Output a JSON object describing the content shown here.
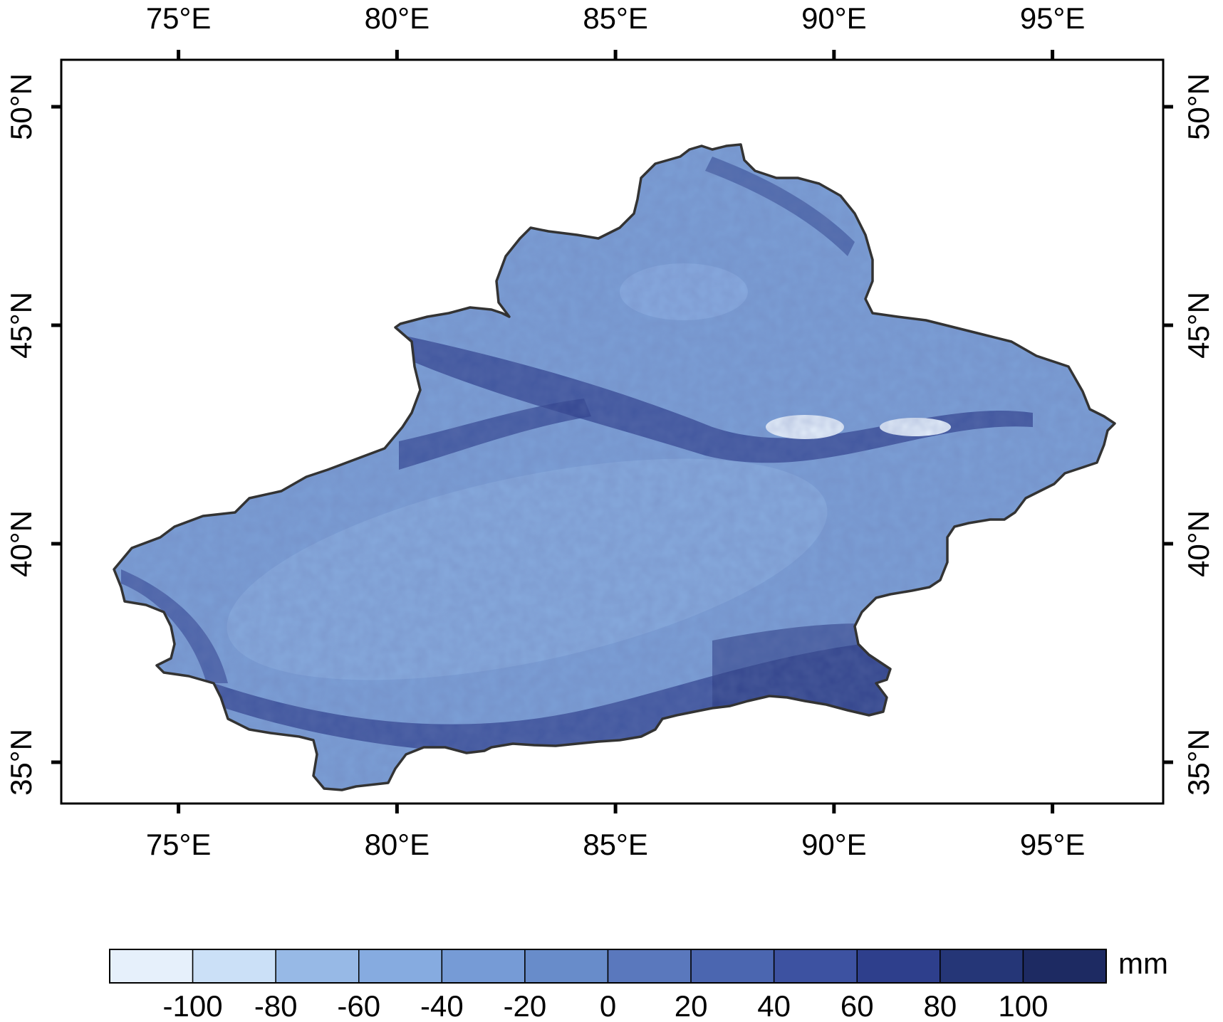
{
  "map": {
    "axes": {
      "lon_ticks": [
        75,
        80,
        85,
        90,
        95
      ],
      "lat_ticks": [
        35,
        40,
        45,
        50
      ],
      "lon_tick_labels": [
        "75°E",
        "80°E",
        "85°E",
        "90°E",
        "95°E"
      ],
      "lat_tick_labels": [
        "35°N",
        "40°N",
        "45°N",
        "50°N"
      ],
      "xlim": [
        72.3,
        97.5
      ],
      "ylim": [
        32.5,
        51.1
      ]
    },
    "region": {
      "name": "",
      "outline_color": "#333333",
      "base_fill": "#7b9fd6"
    },
    "legend": {
      "unit": "mm",
      "labels": [
        "-100",
        "-80",
        "-60",
        "-40",
        "-20",
        "0",
        "20",
        "40",
        "60",
        "80",
        "100"
      ],
      "colors": [
        "#e6f0fb",
        "#cbe0f7",
        "#97b9e6",
        "#86abe0",
        "#769bd6",
        "#688cca",
        "#5a78bd",
        "#4b66b0",
        "#3d52a1",
        "#2e3f8c",
        "#253677",
        "#1d2a62"
      ]
    }
  }
}
